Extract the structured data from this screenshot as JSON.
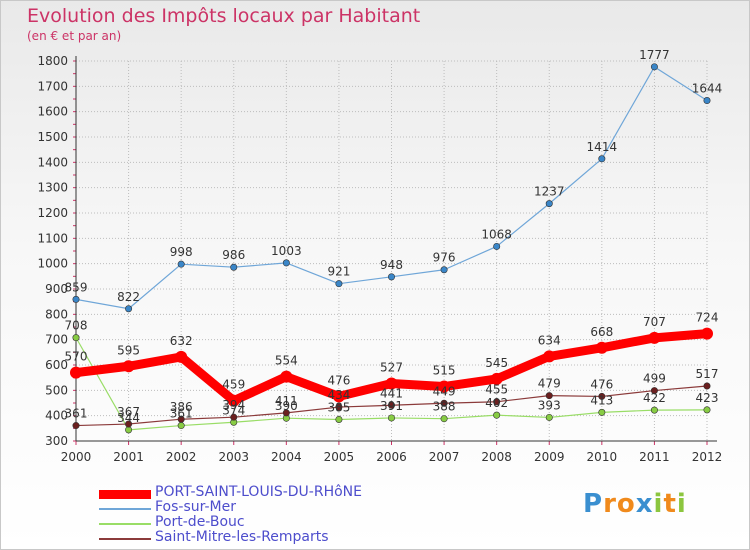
{
  "title": "Evolution des Impôts locaux par Habitant",
  "subtitle": "(en € et par an)",
  "logo": {
    "text": "Proxiti",
    "letters": [
      {
        "ch": "P",
        "color": "#3a8fd0"
      },
      {
        "ch": "r",
        "color": "#f08a1c"
      },
      {
        "ch": "o",
        "color": "#f08a1c"
      },
      {
        "ch": "x",
        "color": "#3a8fd0"
      },
      {
        "ch": "i",
        "color": "#8cc63f"
      },
      {
        "ch": "t",
        "color": "#f08a1c"
      },
      {
        "ch": "i",
        "color": "#8cc63f"
      }
    ]
  },
  "chart_data": {
    "type": "line",
    "x": [
      "2000",
      "2001",
      "2002",
      "2003",
      "2004",
      "2005",
      "2006",
      "2007",
      "2008",
      "2009",
      "2010",
      "2011",
      "2012"
    ],
    "ylim": [
      300,
      1800
    ],
    "yticks": [
      300,
      400,
      500,
      600,
      700,
      800,
      900,
      1000,
      1100,
      1200,
      1300,
      1400,
      1500,
      1600,
      1700,
      1800
    ],
    "grid": true,
    "legend_position": "bottom-left",
    "series": [
      {
        "name": "PORT-SAINT-LOUIS-DU-RHôNE",
        "color": "#ff0000",
        "marker": "#ff0000",
        "values": [
          570,
          595,
          632,
          459,
          554,
          476,
          527,
          515,
          545,
          634,
          668,
          707,
          724
        ],
        "labels": [
          "570",
          "595",
          "632",
          "459",
          "554",
          "476",
          "527",
          "515",
          "545",
          "634",
          "668",
          "707",
          "724"
        ]
      },
      {
        "name": "Fos-sur-Mer",
        "color": "#6fa6d8",
        "marker": "#3a86c8",
        "values": [
          859,
          822,
          998,
          986,
          1003,
          921,
          948,
          976,
          1068,
          1237,
          1414,
          1777,
          1644
        ],
        "labels": [
          "859",
          "822",
          "998",
          "986",
          "1003",
          "921",
          "948",
          "976",
          "1068",
          "1237",
          "1414",
          "1777",
          "1644"
        ]
      },
      {
        "name": "Port-de-Bouc",
        "color": "#99dd66",
        "marker": "#88cc44",
        "values": [
          708,
          344,
          361,
          374,
          390,
          385,
          391,
          388,
          402,
          393,
          413,
          422,
          423
        ],
        "labels": [
          "708",
          "344",
          "361",
          "374",
          "390",
          "385",
          "391",
          "388",
          "402",
          "393",
          "413",
          "422",
          "423"
        ]
      },
      {
        "name": "Saint-Mitre-les-Remparts",
        "color": "#8b3a3a",
        "marker": "#6b1f1f",
        "values": [
          361,
          367,
          386,
          394,
          411,
          434,
          441,
          449,
          455,
          479,
          476,
          499,
          517
        ],
        "labels": [
          "361",
          "367",
          "386",
          "394",
          "411",
          "434",
          "441",
          "449",
          "455",
          "479",
          "476",
          "499",
          "517"
        ]
      }
    ]
  }
}
